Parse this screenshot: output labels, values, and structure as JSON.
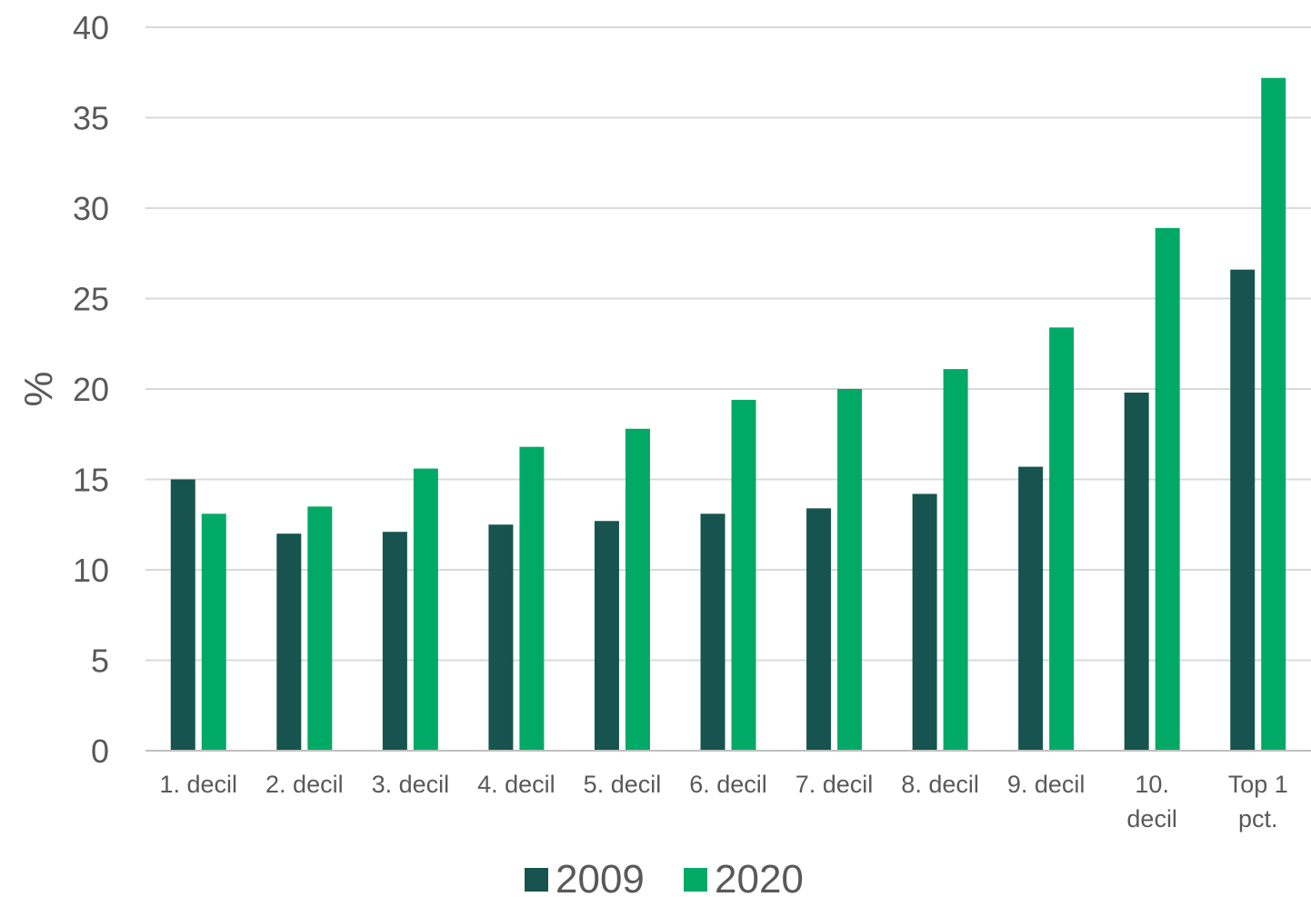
{
  "chart_data": {
    "type": "bar",
    "categories": [
      [
        "1. decil"
      ],
      [
        "2. decil"
      ],
      [
        "3. decil"
      ],
      [
        "4. decil"
      ],
      [
        "5. decil"
      ],
      [
        "6. decil"
      ],
      [
        "7. decil"
      ],
      [
        "8. decil"
      ],
      [
        "9. decil"
      ],
      [
        "10.",
        "decil"
      ],
      [
        "Top 1",
        "pct."
      ]
    ],
    "series": [
      {
        "name": "2009",
        "color": "#17544f",
        "values": [
          15.0,
          12.0,
          12.1,
          12.5,
          12.7,
          13.1,
          13.4,
          14.2,
          15.7,
          19.8,
          26.6
        ]
      },
      {
        "name": "2020",
        "color": "#00aa66",
        "values": [
          13.1,
          13.5,
          15.6,
          16.8,
          17.8,
          19.4,
          20.0,
          21.1,
          23.4,
          28.9,
          37.2
        ]
      }
    ],
    "ylabel": "%",
    "ylim": [
      0,
      40
    ],
    "yticks": [
      0,
      5,
      10,
      15,
      20,
      25,
      30,
      35,
      40
    ],
    "grid": true,
    "legend_position": "bottom"
  }
}
